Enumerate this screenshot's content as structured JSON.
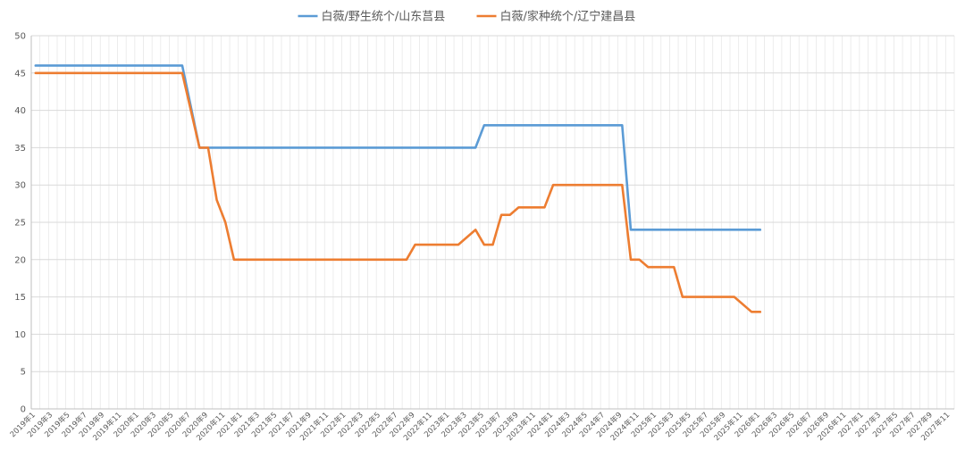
{
  "chart_data": {
    "type": "line",
    "title": "",
    "xlabel": "",
    "ylabel": "",
    "ylim": [
      0,
      50
    ],
    "yticks": [
      0,
      5,
      10,
      15,
      20,
      25,
      30,
      35,
      40,
      45,
      50
    ],
    "grid": true,
    "legend_position": "top",
    "x_start": "2019年1",
    "x_end": "2027年11",
    "x_tick_labels": [
      "2019年1",
      "2019年3",
      "2019年5",
      "2019年7",
      "2019年9",
      "2019年11",
      "2020年1",
      "2020年3",
      "2020年5",
      "2020年7",
      "2020年9",
      "2020年11",
      "2021年1",
      "2021年3",
      "2021年5",
      "2021年7",
      "2021年9",
      "2021年11",
      "2022年1",
      "2022年3",
      "2022年5",
      "2022年7",
      "2022年9",
      "2022年11",
      "2023年1",
      "2023年3",
      "2023年5",
      "2023年7",
      "2023年9",
      "2023年11",
      "2024年1",
      "2024年3",
      "2024年5",
      "2024年7",
      "2024年9",
      "2024年11",
      "2025年1",
      "2025年3",
      "2025年5",
      "2025年7",
      "2025年9",
      "2025年11",
      "2026年1",
      "2026年3",
      "2026年5",
      "2026年7",
      "2026年9",
      "2026年11",
      "2027年1",
      "2027年3",
      "2027年5",
      "2027年7",
      "2027年9",
      "2027年11"
    ],
    "series": [
      {
        "name": "白薇/野生统个/山东莒县",
        "color": "#5B9BD5",
        "points": [
          {
            "x": "2019年1",
            "y": 46
          },
          {
            "x": "2020年6",
            "y": 46
          },
          {
            "x": "2020年8",
            "y": 35
          },
          {
            "x": "2023年4",
            "y": 35
          },
          {
            "x": "2023年5",
            "y": 38
          },
          {
            "x": "2024年9",
            "y": 38
          },
          {
            "x": "2024年10",
            "y": 24
          },
          {
            "x": "2026年1",
            "y": 24
          }
        ]
      },
      {
        "name": "白薇/家种统个/辽宁建昌县",
        "color": "#ED7D31",
        "points": [
          {
            "x": "2019年1",
            "y": 45
          },
          {
            "x": "2020年6",
            "y": 45
          },
          {
            "x": "2020年8",
            "y": 35
          },
          {
            "x": "2020年9",
            "y": 35
          },
          {
            "x": "2020年10",
            "y": 28
          },
          {
            "x": "2020年11",
            "y": 25
          },
          {
            "x": "2020年12",
            "y": 20
          },
          {
            "x": "2022年8",
            "y": 20
          },
          {
            "x": "2022年9",
            "y": 22
          },
          {
            "x": "2023年2",
            "y": 22
          },
          {
            "x": "2023年4",
            "y": 24
          },
          {
            "x": "2023年5",
            "y": 22
          },
          {
            "x": "2023年6",
            "y": 22
          },
          {
            "x": "2023年7",
            "y": 26
          },
          {
            "x": "2023年8",
            "y": 26
          },
          {
            "x": "2023年9",
            "y": 27
          },
          {
            "x": "2023年12",
            "y": 27
          },
          {
            "x": "2024年1",
            "y": 30
          },
          {
            "x": "2024年9",
            "y": 30
          },
          {
            "x": "2024年10",
            "y": 20
          },
          {
            "x": "2024年11",
            "y": 20
          },
          {
            "x": "2024年12",
            "y": 19
          },
          {
            "x": "2025年3",
            "y": 19
          },
          {
            "x": "2025年4",
            "y": 15
          },
          {
            "x": "2025年10",
            "y": 15
          },
          {
            "x": "2025年12",
            "y": 13
          },
          {
            "x": "2026年1",
            "y": 13
          }
        ]
      }
    ]
  }
}
